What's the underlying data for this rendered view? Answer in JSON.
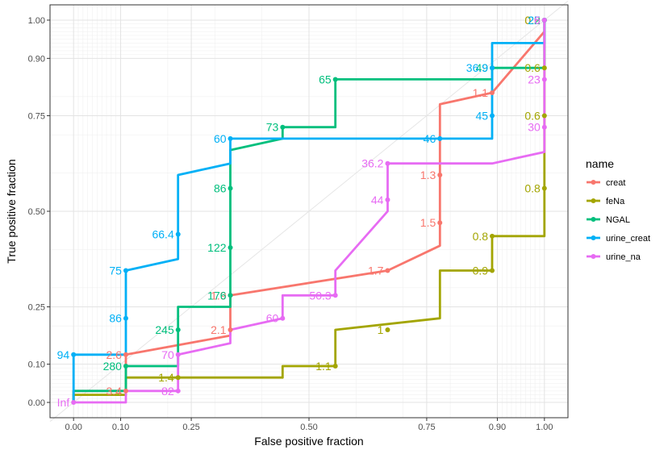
{
  "chart_data": {
    "type": "line",
    "title": "",
    "xlabel": "False positive fraction",
    "ylabel": "True positive fraction",
    "xlim": [
      -0.05,
      1.05
    ],
    "ylim": [
      -0.04,
      1.04
    ],
    "x_ticks": [
      {
        "v": 0.0,
        "label": "0.00"
      },
      {
        "v": 0.1,
        "label": "0.10"
      },
      {
        "v": 0.25,
        "label": "0.25"
      },
      {
        "v": 0.5,
        "label": "0.50"
      },
      {
        "v": 0.75,
        "label": "0.75"
      },
      {
        "v": 0.9,
        "label": "0.90"
      },
      {
        "v": 1.0,
        "label": "1.00"
      }
    ],
    "y_ticks": [
      {
        "v": 0.0,
        "label": "0.00"
      },
      {
        "v": 0.1,
        "label": "0.10"
      },
      {
        "v": 0.25,
        "label": "0.25"
      },
      {
        "v": 0.5,
        "label": "0.50"
      },
      {
        "v": 0.75,
        "label": "0.75"
      },
      {
        "v": 0.9,
        "label": "0.90"
      },
      {
        "v": 1.0,
        "label": "1.00"
      }
    ],
    "minor_grid": [
      0.01,
      0.02,
      0.03,
      0.04,
      0.05,
      0.06,
      0.07,
      0.08,
      0.09,
      0.2,
      0.3,
      0.4,
      0.6,
      0.7,
      0.8,
      0.91,
      0.92,
      0.93,
      0.94,
      0.95,
      0.96,
      0.97,
      0.98,
      0.99
    ],
    "grid": true,
    "legend": {
      "title": "name",
      "placement": "right",
      "entries": [
        "creat",
        "feNa",
        "NGAL",
        "urine_creat",
        "urine_na"
      ]
    },
    "series": [
      {
        "name": "creat",
        "color": "#F8766D",
        "line": [
          [
            0,
            0
          ],
          [
            0,
            0.03
          ],
          [
            0.111,
            0.03
          ],
          [
            0.111,
            0.125
          ],
          [
            0.333,
            0.175
          ],
          [
            0.333,
            0.28
          ],
          [
            0.667,
            0.345
          ],
          [
            0.778,
            0.41
          ],
          [
            0.778,
            0.78
          ],
          [
            0.889,
            0.81
          ],
          [
            1.0,
            0.97
          ]
        ],
        "points": [
          {
            "x": 0.111,
            "y": 0.03,
            "label": "3.4"
          },
          {
            "x": 0.111,
            "y": 0.125,
            "label": "2.6"
          },
          {
            "x": 0.333,
            "y": 0.19,
            "label": "2.1"
          },
          {
            "x": 0.333,
            "y": 0.28,
            "label": "1.9"
          },
          {
            "x": 0.667,
            "y": 0.345,
            "label": "1.7"
          },
          {
            "x": 0.778,
            "y": 0.47,
            "label": "1.5"
          },
          {
            "x": 0.778,
            "y": 0.595,
            "label": "1.3"
          },
          {
            "x": 0.889,
            "y": 0.81,
            "label": "1.1"
          },
          {
            "x": 1.0,
            "y": 1.0,
            "label": "0.9"
          }
        ]
      },
      {
        "name": "feNa",
        "color": "#A3A500",
        "line": [
          [
            0,
            0
          ],
          [
            0,
            0.02
          ],
          [
            0.111,
            0.02
          ],
          [
            0.111,
            0.065
          ],
          [
            0.444,
            0.065
          ],
          [
            0.444,
            0.095
          ],
          [
            0.556,
            0.095
          ],
          [
            0.556,
            0.19
          ],
          [
            0.778,
            0.22
          ],
          [
            0.778,
            0.345
          ],
          [
            0.889,
            0.345
          ],
          [
            0.889,
            0.435
          ],
          [
            1.0,
            0.435
          ],
          [
            1.0,
            1.0
          ]
        ],
        "points": [
          {
            "x": 0.222,
            "y": 0.065,
            "label": "1.4"
          },
          {
            "x": 0.556,
            "y": 0.095,
            "label": "1.1"
          },
          {
            "x": 0.667,
            "y": 0.19,
            "label": "1"
          },
          {
            "x": 0.889,
            "y": 0.345,
            "label": "0.9"
          },
          {
            "x": 0.889,
            "y": 0.435,
            "label": "0.8"
          },
          {
            "x": 1.0,
            "y": 0.56,
            "label": "0.8"
          },
          {
            "x": 1.0,
            "y": 0.75,
            "label": "0.6"
          },
          {
            "x": 1.0,
            "y": 0.875,
            "label": "0.6"
          },
          {
            "x": 1.0,
            "y": 1.0,
            "label": "0.5"
          }
        ]
      },
      {
        "name": "NGAL",
        "color": "#00BF7D",
        "line": [
          [
            0,
            0
          ],
          [
            0,
            0.03
          ],
          [
            0.111,
            0.03
          ],
          [
            0.111,
            0.095
          ],
          [
            0.222,
            0.095
          ],
          [
            0.222,
            0.25
          ],
          [
            0.333,
            0.25
          ],
          [
            0.333,
            0.66
          ],
          [
            0.444,
            0.69
          ],
          [
            0.444,
            0.72
          ],
          [
            0.556,
            0.72
          ],
          [
            0.556,
            0.845
          ],
          [
            0.889,
            0.845
          ],
          [
            0.889,
            0.875
          ],
          [
            1.0,
            0.875
          ],
          [
            1.0,
            1.0
          ]
        ],
        "points": [
          {
            "x": 0.111,
            "y": 0.095,
            "label": "280"
          },
          {
            "x": 0.222,
            "y": 0.19,
            "label": "245"
          },
          {
            "x": 0.333,
            "y": 0.28,
            "label": "176"
          },
          {
            "x": 0.333,
            "y": 0.405,
            "label": "122"
          },
          {
            "x": 0.333,
            "y": 0.56,
            "label": "86"
          },
          {
            "x": 0.444,
            "y": 0.72,
            "label": "73"
          },
          {
            "x": 0.556,
            "y": 0.845,
            "label": "65"
          },
          {
            "x": 0.889,
            "y": 0.875,
            "label": "49"
          },
          {
            "x": 1.0,
            "y": 1.0,
            "label": "22"
          }
        ]
      },
      {
        "name": "urine_creat",
        "color": "#00B0F6",
        "line": [
          [
            0,
            0
          ],
          [
            0,
            0.125
          ],
          [
            0.111,
            0.125
          ],
          [
            0.111,
            0.345
          ],
          [
            0.222,
            0.375
          ],
          [
            0.222,
            0.595
          ],
          [
            0.333,
            0.625
          ],
          [
            0.333,
            0.69
          ],
          [
            0.889,
            0.69
          ],
          [
            0.889,
            0.94
          ],
          [
            1.0,
            0.94
          ],
          [
            1.0,
            1.0
          ]
        ],
        "points": [
          {
            "x": 0.0,
            "y": 0.125,
            "label": "94"
          },
          {
            "x": 0.111,
            "y": 0.22,
            "label": "86"
          },
          {
            "x": 0.111,
            "y": 0.345,
            "label": "75"
          },
          {
            "x": 0.222,
            "y": 0.44,
            "label": "66.4"
          },
          {
            "x": 0.333,
            "y": 0.69,
            "label": "60"
          },
          {
            "x": 0.778,
            "y": 0.69,
            "label": "46"
          },
          {
            "x": 0.889,
            "y": 0.75,
            "label": "45"
          },
          {
            "x": 0.889,
            "y": 0.875,
            "label": "36.9"
          },
          {
            "x": 1.0,
            "y": 1.0,
            "label": "25"
          }
        ]
      },
      {
        "name": "urine_na",
        "color": "#E76BF3",
        "line": [
          [
            0,
            0
          ],
          [
            0.111,
            0
          ],
          [
            0.111,
            0.03
          ],
          [
            0.222,
            0.03
          ],
          [
            0.222,
            0.125
          ],
          [
            0.333,
            0.155
          ],
          [
            0.333,
            0.19
          ],
          [
            0.444,
            0.22
          ],
          [
            0.444,
            0.28
          ],
          [
            0.556,
            0.28
          ],
          [
            0.556,
            0.345
          ],
          [
            0.667,
            0.5
          ],
          [
            0.667,
            0.625
          ],
          [
            0.889,
            0.625
          ],
          [
            1.0,
            0.655
          ],
          [
            1.0,
            1.0
          ]
        ],
        "points": [
          {
            "x": 0.0,
            "y": 0.0,
            "label": "Inf"
          },
          {
            "x": 0.222,
            "y": 0.03,
            "label": "82"
          },
          {
            "x": 0.222,
            "y": 0.125,
            "label": "70"
          },
          {
            "x": 0.444,
            "y": 0.22,
            "label": "60"
          },
          {
            "x": 0.556,
            "y": 0.28,
            "label": "50.3"
          },
          {
            "x": 0.667,
            "y": 0.53,
            "label": "44"
          },
          {
            "x": 0.667,
            "y": 0.625,
            "label": "36.2"
          },
          {
            "x": 1.0,
            "y": 0.72,
            "label": "30"
          },
          {
            "x": 1.0,
            "y": 0.845,
            "label": "23"
          },
          {
            "x": 1.0,
            "y": 1.0,
            "label": "6"
          }
        ]
      }
    ]
  }
}
